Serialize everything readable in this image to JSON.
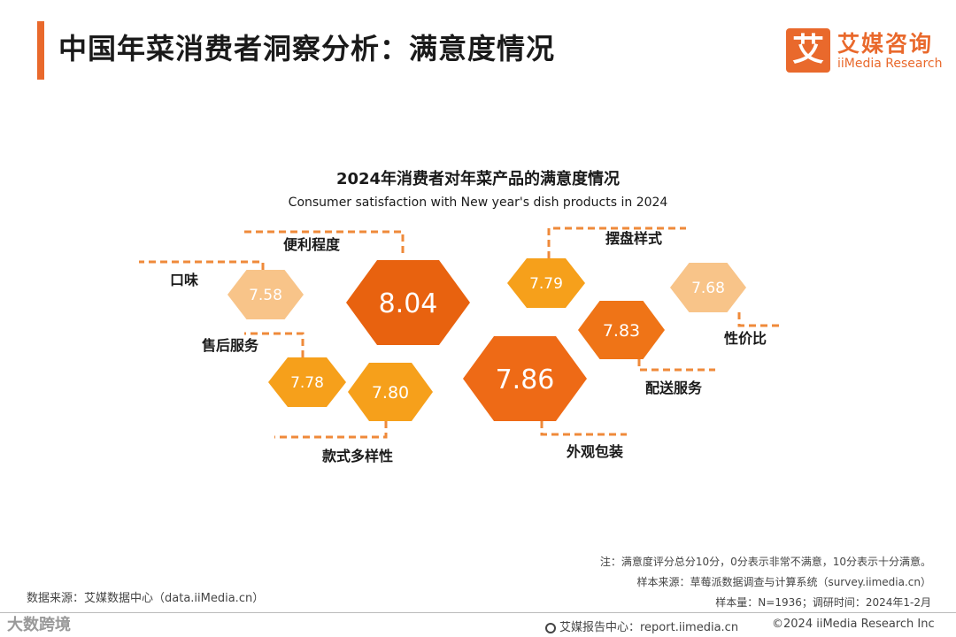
{
  "header": {
    "title": "中国年菜消费者洞察分析：满意度情况",
    "logo_mark": "艾",
    "logo_cn": "艾媒咨询",
    "logo_en": "iiMedia Research",
    "accent_color": "#e9692c"
  },
  "chart_data": {
    "type": "bubble",
    "title": "2024年消费者对年菜产品的满意度情况",
    "subtitle": "Consumer satisfaction with New year's dish products in 2024",
    "categories": [
      "便利程度",
      "外观包装",
      "配送服务",
      "款式多样性",
      "摆盘样式",
      "售后服务",
      "口味",
      "性价比"
    ],
    "values": [
      8.04,
      7.86,
      7.83,
      7.8,
      7.79,
      7.78,
      7.58,
      7.68
    ],
    "value_labels": [
      "8.04",
      "7.86",
      "7.83",
      "7.80",
      "7.79",
      "7.78",
      "7.58",
      "7.68"
    ],
    "shape": "hexagon",
    "colors": [
      "#e8620f",
      "#ee6a16",
      "#ef7417",
      "#f6a01b",
      "#f6a01b",
      "#f6a01b",
      "#f8c489",
      "#f8c489"
    ],
    "connector_color": "#ef8a3a"
  },
  "notes": {
    "note": "注：满意度评分总分10分，0分表示非常不满意，10分表示十分满意。",
    "sample_source": "样本来源：草莓派数据调查与计算系统（survey.iimedia.cn）",
    "sample_info": "样本量：N=1936；调研时间：2024年1-2月",
    "data_source": "数据来源：艾媒数据中心（data.iiMedia.cn）"
  },
  "footer": {
    "report_center": "艾媒报告中心：report.iimedia.cn",
    "copyright": "©2024  iiMedia Research  Inc",
    "watermark": "大数跨境"
  }
}
